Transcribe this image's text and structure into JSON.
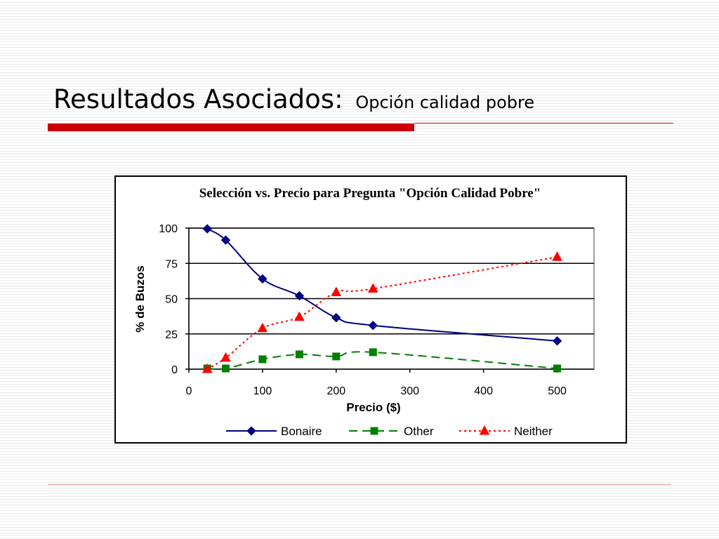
{
  "slide": {
    "title": "Resultados Asociados:",
    "subtitle": "Opción calidad pobre"
  },
  "chart_data": {
    "type": "line",
    "title": "Selección vs. Precio para Pregunta \"Opción Calidad Pobre\"",
    "xlabel": "Precio ($)",
    "ylabel": "% de Buzos",
    "xlim": [
      0,
      550
    ],
    "ylim": [
      0,
      100
    ],
    "xticks": [
      "0",
      "100",
      "200",
      "300",
      "400",
      "500"
    ],
    "yticks": [
      "0",
      "25",
      "50",
      "75",
      "100"
    ],
    "grid": "horizontal",
    "legend": "bottom",
    "x": [
      25,
      50,
      100,
      150,
      200,
      250,
      500
    ],
    "series": [
      {
        "name": "Bonaire",
        "color": "#000080",
        "line": "solid",
        "marker": "diamond",
        "values": [
          99.5,
          91.5,
          64,
          52,
          36.5,
          31,
          20
        ]
      },
      {
        "name": "Other",
        "color": "#008000",
        "line": "dashed",
        "marker": "square",
        "values": [
          0.5,
          0.5,
          7,
          10.5,
          9,
          12,
          0.5
        ]
      },
      {
        "name": "Neither",
        "color": "#ff0000",
        "line": "dotted",
        "marker": "triangle",
        "values": [
          0,
          8,
          29,
          37,
          54.5,
          57,
          79.5
        ]
      }
    ]
  }
}
